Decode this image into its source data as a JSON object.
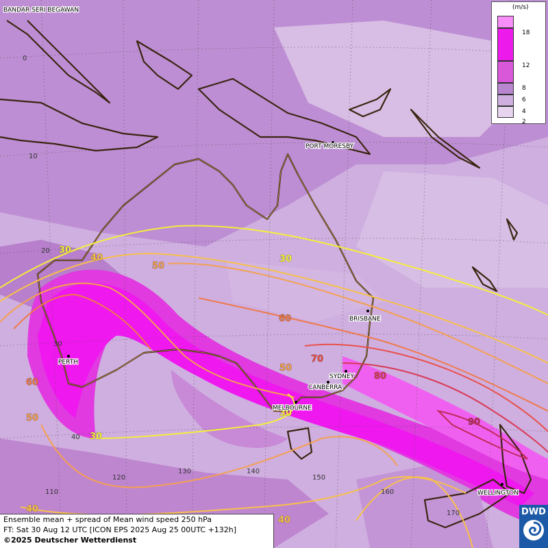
{
  "legend": {
    "unit": "(m/s)",
    "ticks": [
      "2",
      "4",
      "6",
      "8",
      "12",
      "18"
    ],
    "colors": [
      "#e7d4ee",
      "#cfafe0",
      "#b885cf",
      "#d957d9",
      "#ec1bec",
      "#f78df7"
    ]
  },
  "cities": {
    "bandar": "BANDAR SERI BEGAWAN",
    "port_moresby": "PORT MORESBY",
    "brisbane": "BRISBANE",
    "perth": "PERTH",
    "sydney": "SYDNEY",
    "canberra": "CANBERRA",
    "melbourne": "MELBOURNE",
    "wellington": "WELLINGTON"
  },
  "grid_labels": {
    "lat_0": "0",
    "lat_10": "10",
    "lat_20": "20",
    "lat_30": "30",
    "lat_40": "40",
    "lon_110": "110",
    "lon_120": "120",
    "lon_130": "130",
    "lon_140": "140",
    "lon_150": "150",
    "lon_160": "160",
    "lon_170": "170"
  },
  "isotach_labels": {
    "l30_a": "30",
    "l40_a": "40",
    "l50_a": "50",
    "l30_b": "30",
    "l60_a": "60",
    "l70": "70",
    "l80": "80",
    "l90": "90",
    "l50_b": "50",
    "l30_c": "30",
    "l60_b": "60",
    "l50_c": "50",
    "l30_d": "30",
    "l40_b": "40",
    "l40_c": "40"
  },
  "isotach_colors": {
    "30": "#f4ee3c",
    "40": "#f7c04a",
    "50": "#f4a050",
    "60": "#ee7a4a",
    "70": "#e8504a",
    "80": "#d83a55",
    "90": "#c02a5a"
  },
  "info": {
    "line1": "Ensemble mean + spread of Mean wind speed 250 hPa",
    "line2": "FT: Sat 30 Aug 12 UTC [ICON EPS 2025 Aug 25 00UTC +132h]",
    "copyright": "©2025 Deutscher Wetterdienst"
  },
  "logo": {
    "text": "DWD"
  }
}
